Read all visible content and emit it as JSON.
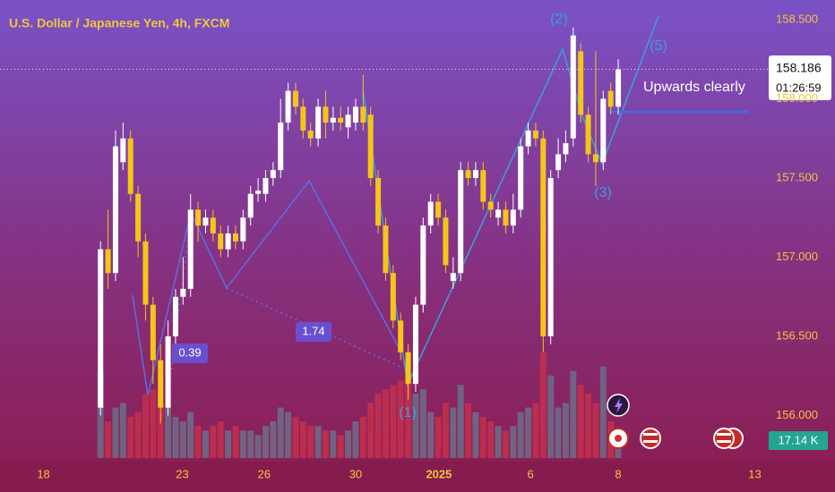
{
  "chart_data": {
    "type": "candlestick",
    "title": "U.S. Dollar / Japanese Yen, 4h, FXCM",
    "x": [
      0,
      1,
      2,
      3,
      4,
      5,
      6,
      7,
      8,
      9,
      10,
      11,
      12,
      13,
      14,
      15,
      16,
      17,
      18,
      19,
      20,
      21,
      22,
      23,
      24,
      25,
      26,
      27,
      28,
      29,
      30,
      31,
      32,
      33,
      34,
      35,
      36,
      37,
      38,
      39,
      40,
      41,
      42,
      43,
      44,
      45,
      46,
      47,
      48,
      49,
      50,
      51,
      52,
      53,
      54,
      55,
      56,
      57,
      58,
      59,
      60,
      61,
      62,
      63,
      64,
      65,
      66,
      67,
      68,
      69
    ],
    "open": [
      156.05,
      157.05,
      156.9,
      157.6,
      157.75,
      157.4,
      157.1,
      156.7,
      156.35,
      156.05,
      156.5,
      156.75,
      156.8,
      157.3,
      157.2,
      157.25,
      157.15,
      157.05,
      157.15,
      157.1,
      157.25,
      157.4,
      157.4,
      157.5,
      157.55,
      157.85,
      158.05,
      157.95,
      157.8,
      157.75,
      157.95,
      157.85,
      157.88,
      157.82,
      157.85,
      157.95,
      157.9,
      157.5,
      157.2,
      156.9,
      156.6,
      156.4,
      156.2,
      156.7,
      157.2,
      157.35,
      157.25,
      156.85,
      156.9,
      157.55,
      157.5,
      157.55,
      157.35,
      157.25,
      157.3,
      157.2,
      157.3,
      157.7,
      157.8,
      157.75,
      156.5,
      157.55,
      157.65,
      157.75,
      158.3,
      157.9,
      157.65,
      157.6,
      158.05,
      157.95
    ],
    "high": [
      157.1,
      157.3,
      157.8,
      157.85,
      157.8,
      157.45,
      157.15,
      156.75,
      156.45,
      156.6,
      156.8,
      157.0,
      157.4,
      157.35,
      157.3,
      157.3,
      157.2,
      157.2,
      157.2,
      157.3,
      157.45,
      157.5,
      157.55,
      157.6,
      158.0,
      158.1,
      158.1,
      158.0,
      157.85,
      158.0,
      158.05,
      157.95,
      157.95,
      157.95,
      158.0,
      158.15,
      157.95,
      157.55,
      157.25,
      156.95,
      156.65,
      156.45,
      156.75,
      157.25,
      157.4,
      157.4,
      157.3,
      157.0,
      157.6,
      157.6,
      157.6,
      157.6,
      157.4,
      157.35,
      157.35,
      157.4,
      157.75,
      157.85,
      157.85,
      157.8,
      157.55,
      157.75,
      157.8,
      158.45,
      158.35,
      157.95,
      158.3,
      158.05,
      158.1,
      158.25
    ],
    "low": [
      156.0,
      156.8,
      156.85,
      157.55,
      157.35,
      157.0,
      156.6,
      156.2,
      155.95,
      156.0,
      156.45,
      156.7,
      156.75,
      157.1,
      157.15,
      157.1,
      157.0,
      157.0,
      157.05,
      157.05,
      157.2,
      157.35,
      157.35,
      157.45,
      157.5,
      157.8,
      157.9,
      157.75,
      157.7,
      157.7,
      157.75,
      157.8,
      157.8,
      157.75,
      157.8,
      157.8,
      157.45,
      157.15,
      156.85,
      156.55,
      156.35,
      156.1,
      156.15,
      156.65,
      157.15,
      157.2,
      156.9,
      156.8,
      156.85,
      157.45,
      157.45,
      157.3,
      157.25,
      157.2,
      157.15,
      157.15,
      157.25,
      157.65,
      157.7,
      156.4,
      156.45,
      157.5,
      157.6,
      157.7,
      157.85,
      157.6,
      157.45,
      157.55,
      157.9,
      157.9
    ],
    "close": [
      157.05,
      156.9,
      157.7,
      157.75,
      157.4,
      157.1,
      156.7,
      156.35,
      156.05,
      156.5,
      156.75,
      156.8,
      157.3,
      157.2,
      157.25,
      157.15,
      157.05,
      157.15,
      157.1,
      157.25,
      157.4,
      157.42,
      157.5,
      157.55,
      157.85,
      158.05,
      157.95,
      157.8,
      157.75,
      157.95,
      157.85,
      157.88,
      157.85,
      157.9,
      157.95,
      157.85,
      157.5,
      157.2,
      156.9,
      156.6,
      156.4,
      156.2,
      156.7,
      157.2,
      157.35,
      157.25,
      156.95,
      156.9,
      157.55,
      157.5,
      157.55,
      157.35,
      157.3,
      157.3,
      157.2,
      157.3,
      157.7,
      157.8,
      157.75,
      156.5,
      157.5,
      157.65,
      157.72,
      158.4,
      157.9,
      157.65,
      157.6,
      158.0,
      157.95,
      158.186
    ],
    "up_color": "#ffffff",
    "down_color": "#f5c518",
    "volume": {
      "values": [
        95,
        40,
        55,
        60,
        45,
        50,
        70,
        75,
        60,
        55,
        45,
        40,
        50,
        35,
        30,
        35,
        40,
        30,
        35,
        30,
        30,
        25,
        35,
        40,
        55,
        50,
        45,
        40,
        35,
        35,
        30,
        30,
        25,
        30,
        40,
        45,
        60,
        70,
        75,
        80,
        85,
        90,
        70,
        75,
        50,
        45,
        60,
        55,
        80,
        60,
        50,
        45,
        40,
        35,
        30,
        35,
        50,
        55,
        60,
        115,
        90,
        55,
        60,
        95,
        80,
        70,
        60,
        100,
        40,
        17.14
      ],
      "ylim": [
        0,
        500
      ],
      "up_color": "#6c6f8a",
      "down_color": "#c4304c",
      "last_label": "17.14 K"
    },
    "xlim": [
      -13.4,
      88.1
    ],
    "xticks": [
      {
        "value": -7.6,
        "label": "18"
      },
      {
        "value": 10.9,
        "label": "23"
      },
      {
        "value": 21.8,
        "label": "26"
      },
      {
        "value": 34.0,
        "label": "30"
      },
      {
        "value": 45.1,
        "label": "2025"
      },
      {
        "value": 57.3,
        "label": "6"
      },
      {
        "value": 69.0,
        "label": "8"
      },
      {
        "value": 87.2,
        "label": "13"
      }
    ],
    "ylim": [
      155.715,
      158.624
    ],
    "yticks": [
      {
        "value": 156,
        "label": "156.000"
      },
      {
        "value": 156.5,
        "label": "156.500"
      },
      {
        "value": 157,
        "label": "157.000"
      },
      {
        "value": 157.5,
        "label": "157.500"
      },
      {
        "value": 158,
        "label": "158.000"
      },
      {
        "value": 158.5,
        "label": "158.500"
      }
    ],
    "countdown": "01:26:59",
    "note": "Upwards clearly",
    "wave_labels": [
      "(1)",
      "(2)",
      "(3)",
      "(5)"
    ],
    "ratio_labels": [
      0.39,
      1.74
    ]
  }
}
